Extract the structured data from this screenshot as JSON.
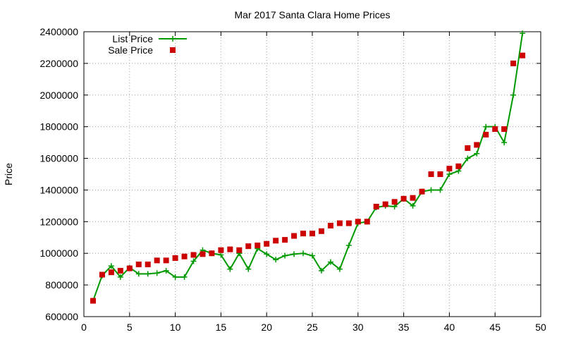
{
  "chart_data": {
    "type": "line",
    "title": "Mar 2017 Santa Clara Home Prices",
    "xlabel": "",
    "ylabel": "Price",
    "xlim": [
      0,
      50
    ],
    "ylim": [
      600000,
      2400000
    ],
    "xticks": [
      "0",
      "5",
      "10",
      "15",
      "20",
      "25",
      "30",
      "35",
      "40",
      "45",
      "50"
    ],
    "yticks": [
      "600000",
      "800000",
      "1000000",
      "1200000",
      "1400000",
      "1600000",
      "1800000",
      "2000000",
      "2200000",
      "2400000"
    ],
    "grid": true,
    "legend_position": "top-left",
    "x": [
      1,
      2,
      3,
      4,
      5,
      6,
      7,
      8,
      9,
      10,
      11,
      12,
      13,
      14,
      15,
      16,
      17,
      18,
      19,
      20,
      21,
      22,
      23,
      24,
      25,
      26,
      27,
      28,
      29,
      30,
      31,
      32,
      33,
      34,
      35,
      36,
      37,
      38,
      39,
      40,
      41,
      42,
      43,
      44,
      45,
      46,
      47,
      48
    ],
    "series": [
      {
        "name": "List Price",
        "style": "line-points",
        "color": "#009900",
        "marker": "plus",
        "values": [
          700000,
          860000,
          920000,
          850000,
          910000,
          870000,
          870000,
          875000,
          890000,
          850000,
          850000,
          950000,
          1020000,
          1000000,
          990000,
          900000,
          1000000,
          900000,
          1030000,
          995000,
          960000,
          985000,
          995000,
          1000000,
          985000,
          890000,
          945000,
          900000,
          1050000,
          1190000,
          1200000,
          1290000,
          1300000,
          1295000,
          1345000,
          1300000,
          1390000,
          1400000,
          1400000,
          1500000,
          1520000,
          1600000,
          1630000,
          1800000,
          1800000,
          1700000,
          2000000,
          2390000
        ]
      },
      {
        "name": "Sale Price",
        "style": "points",
        "color": "#cc0000",
        "marker": "square",
        "values": [
          700000,
          865000,
          880000,
          890000,
          905000,
          930000,
          930000,
          955000,
          955000,
          970000,
          980000,
          990000,
          995000,
          1000000,
          1020000,
          1025000,
          1020000,
          1045000,
          1050000,
          1060000,
          1080000,
          1085000,
          1110000,
          1125000,
          1125000,
          1140000,
          1175000,
          1190000,
          1190000,
          1200000,
          1200000,
          1295000,
          1310000,
          1325000,
          1345000,
          1350000,
          1390000,
          1500000,
          1500000,
          1535000,
          1550000,
          1665000,
          1685000,
          1750000,
          1785000,
          1785000,
          2200000,
          2250000
        ]
      }
    ]
  }
}
